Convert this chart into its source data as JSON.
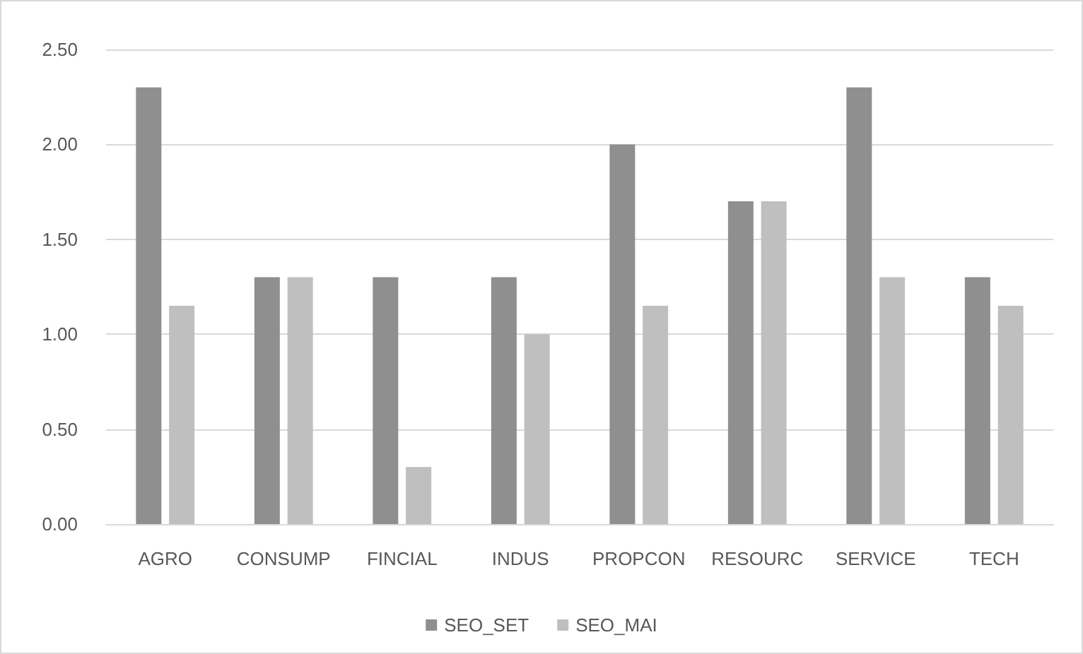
{
  "chart_data": {
    "type": "bar",
    "categories": [
      "AGRO",
      "CONSUMP",
      "FINCIAL",
      "INDUS",
      "PROPCON",
      "RESOURC",
      "SERVICE",
      "TECH"
    ],
    "series": [
      {
        "name": "SEO_SET",
        "color": "#8f8f8f",
        "values": [
          2.3,
          1.3,
          1.3,
          1.3,
          2.0,
          1.7,
          2.3,
          1.3
        ]
      },
      {
        "name": "SEO_MAI",
        "color": "#bfbfbf",
        "values": [
          1.15,
          1.3,
          0.3,
          1.0,
          1.15,
          1.7,
          1.3,
          1.15
        ]
      }
    ],
    "ylim": [
      0,
      2.5
    ],
    "yticks": [
      {
        "value": 0,
        "label": "0.00"
      },
      {
        "value": 0.5,
        "label": "0.50"
      },
      {
        "value": 1,
        "label": "1.00"
      },
      {
        "value": 1.5,
        "label": "1.50"
      },
      {
        "value": 2,
        "label": "2.00"
      },
      {
        "value": 2.5,
        "label": "2.50"
      }
    ],
    "grid": "y",
    "legend": "bottom"
  }
}
